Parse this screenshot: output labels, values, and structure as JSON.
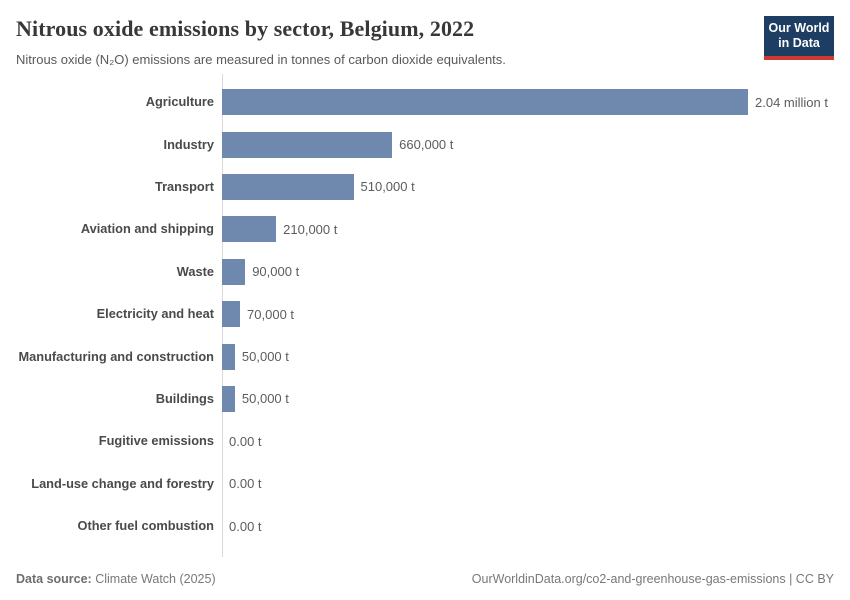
{
  "header": {
    "title": "Nitrous oxide emissions by sector, Belgium, 2022",
    "subtitle": "Nitrous oxide (N₂O) emissions are measured in tonnes of carbon dioxide equivalents.",
    "logo": {
      "line1": "Our World",
      "line2": "in Data",
      "bg_color": "#1d3d63",
      "accent_color": "#cf3a30"
    }
  },
  "chart_data": {
    "type": "bar",
    "orientation": "horizontal",
    "title": "Nitrous oxide emissions by sector, Belgium, 2022",
    "xlabel": "",
    "ylabel": "",
    "unit": "tonnes of CO2 equivalents",
    "xlim": [
      0,
      2040000
    ],
    "grid": false,
    "legend": false,
    "bar_color": "#6f88ad",
    "categories": [
      "Agriculture",
      "Industry",
      "Transport",
      "Aviation and shipping",
      "Waste",
      "Electricity and heat",
      "Manufacturing and construction",
      "Buildings",
      "Fugitive emissions",
      "Land-use change and forestry",
      "Other fuel combustion"
    ],
    "values": [
      2040000,
      660000,
      510000,
      210000,
      90000,
      70000,
      50000,
      50000,
      0,
      0,
      0
    ],
    "value_labels": [
      "2.04 million t",
      "660,000 t",
      "510,000 t",
      "210,000 t",
      "90,000 t",
      "70,000 t",
      "50,000 t",
      "50,000 t",
      "0.00 t",
      "0.00 t",
      "0.00 t"
    ]
  },
  "footer": {
    "source_label": "Data source:",
    "source_value": " Climate Watch (2025)",
    "attribution": "OurWorldinData.org/co2-and-greenhouse-gas-emissions | CC BY"
  }
}
